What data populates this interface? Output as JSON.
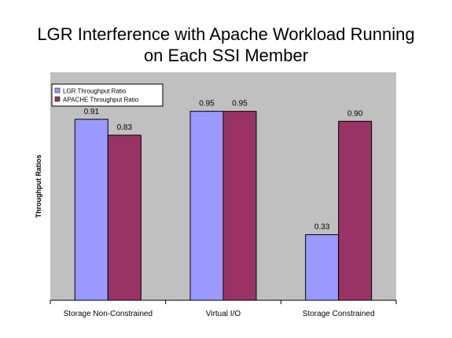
{
  "chart_data": {
    "type": "bar",
    "title_lines": [
      "LGR Interference with Apache Workload Running",
      "on Each SSI Member"
    ],
    "xlabel": "",
    "ylabel": "Throughput Ratios",
    "categories": [
      "Storage Non-Constrained",
      "Virtual I/O",
      "Storage Constrained"
    ],
    "series": [
      {
        "name": "LGR Throughput Ratio",
        "values": [
          0.91,
          0.95,
          0.33
        ],
        "labels": [
          "0.91",
          "0.95",
          "0.33"
        ],
        "color": "#9999ff"
      },
      {
        "name": "APACHE Throughput Ratio",
        "values": [
          0.83,
          0.95,
          0.9
        ],
        "labels": [
          "0.83",
          "0.95",
          "0.90"
        ],
        "color": "#993366"
      }
    ],
    "ylim": [
      0,
      1.0
    ],
    "grid": false,
    "legend": "top-left",
    "plot_background": "#c0c0c0"
  }
}
